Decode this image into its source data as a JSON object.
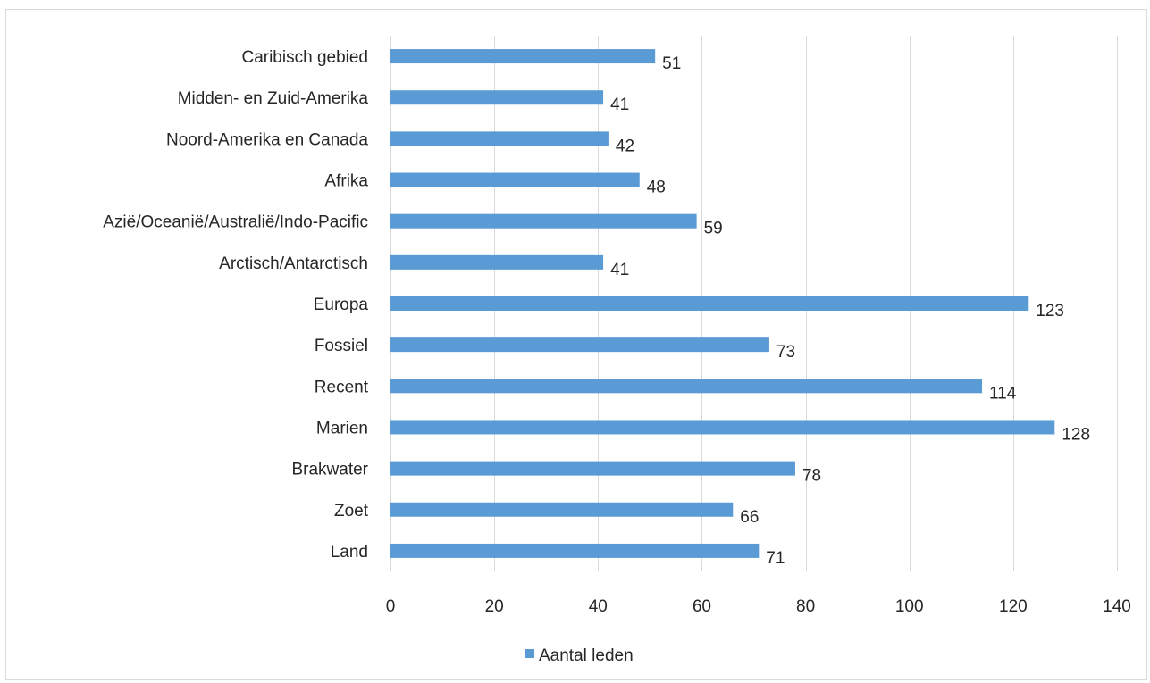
{
  "chart_data": {
    "type": "bar",
    "orientation": "horizontal",
    "title": "",
    "xlabel": "",
    "ylabel": "",
    "categories": [
      "Caribisch gebied",
      "Midden- en Zuid-Amerika",
      "Noord-Amerika en Canada",
      "Afrika",
      "Azië/Oceanië/Australië/Indo-Pacific",
      "Arctisch/Antarctisch",
      "Europa",
      "Fossiel",
      "Recent",
      "Marien",
      "Brakwater",
      "Zoet",
      "Land"
    ],
    "series": [
      {
        "name": "Aantal leden",
        "values": [
          51,
          41,
          42,
          48,
          59,
          41,
          123,
          73,
          114,
          128,
          78,
          66,
          71
        ],
        "color": "#5b9bd5"
      }
    ],
    "xlim": [
      0,
      140
    ],
    "xticks": [
      0,
      20,
      40,
      60,
      80,
      100,
      120,
      140
    ],
    "grid": "vertical",
    "gridColor": "#d9d9d9",
    "data_labels": true,
    "legend": "bottom"
  }
}
